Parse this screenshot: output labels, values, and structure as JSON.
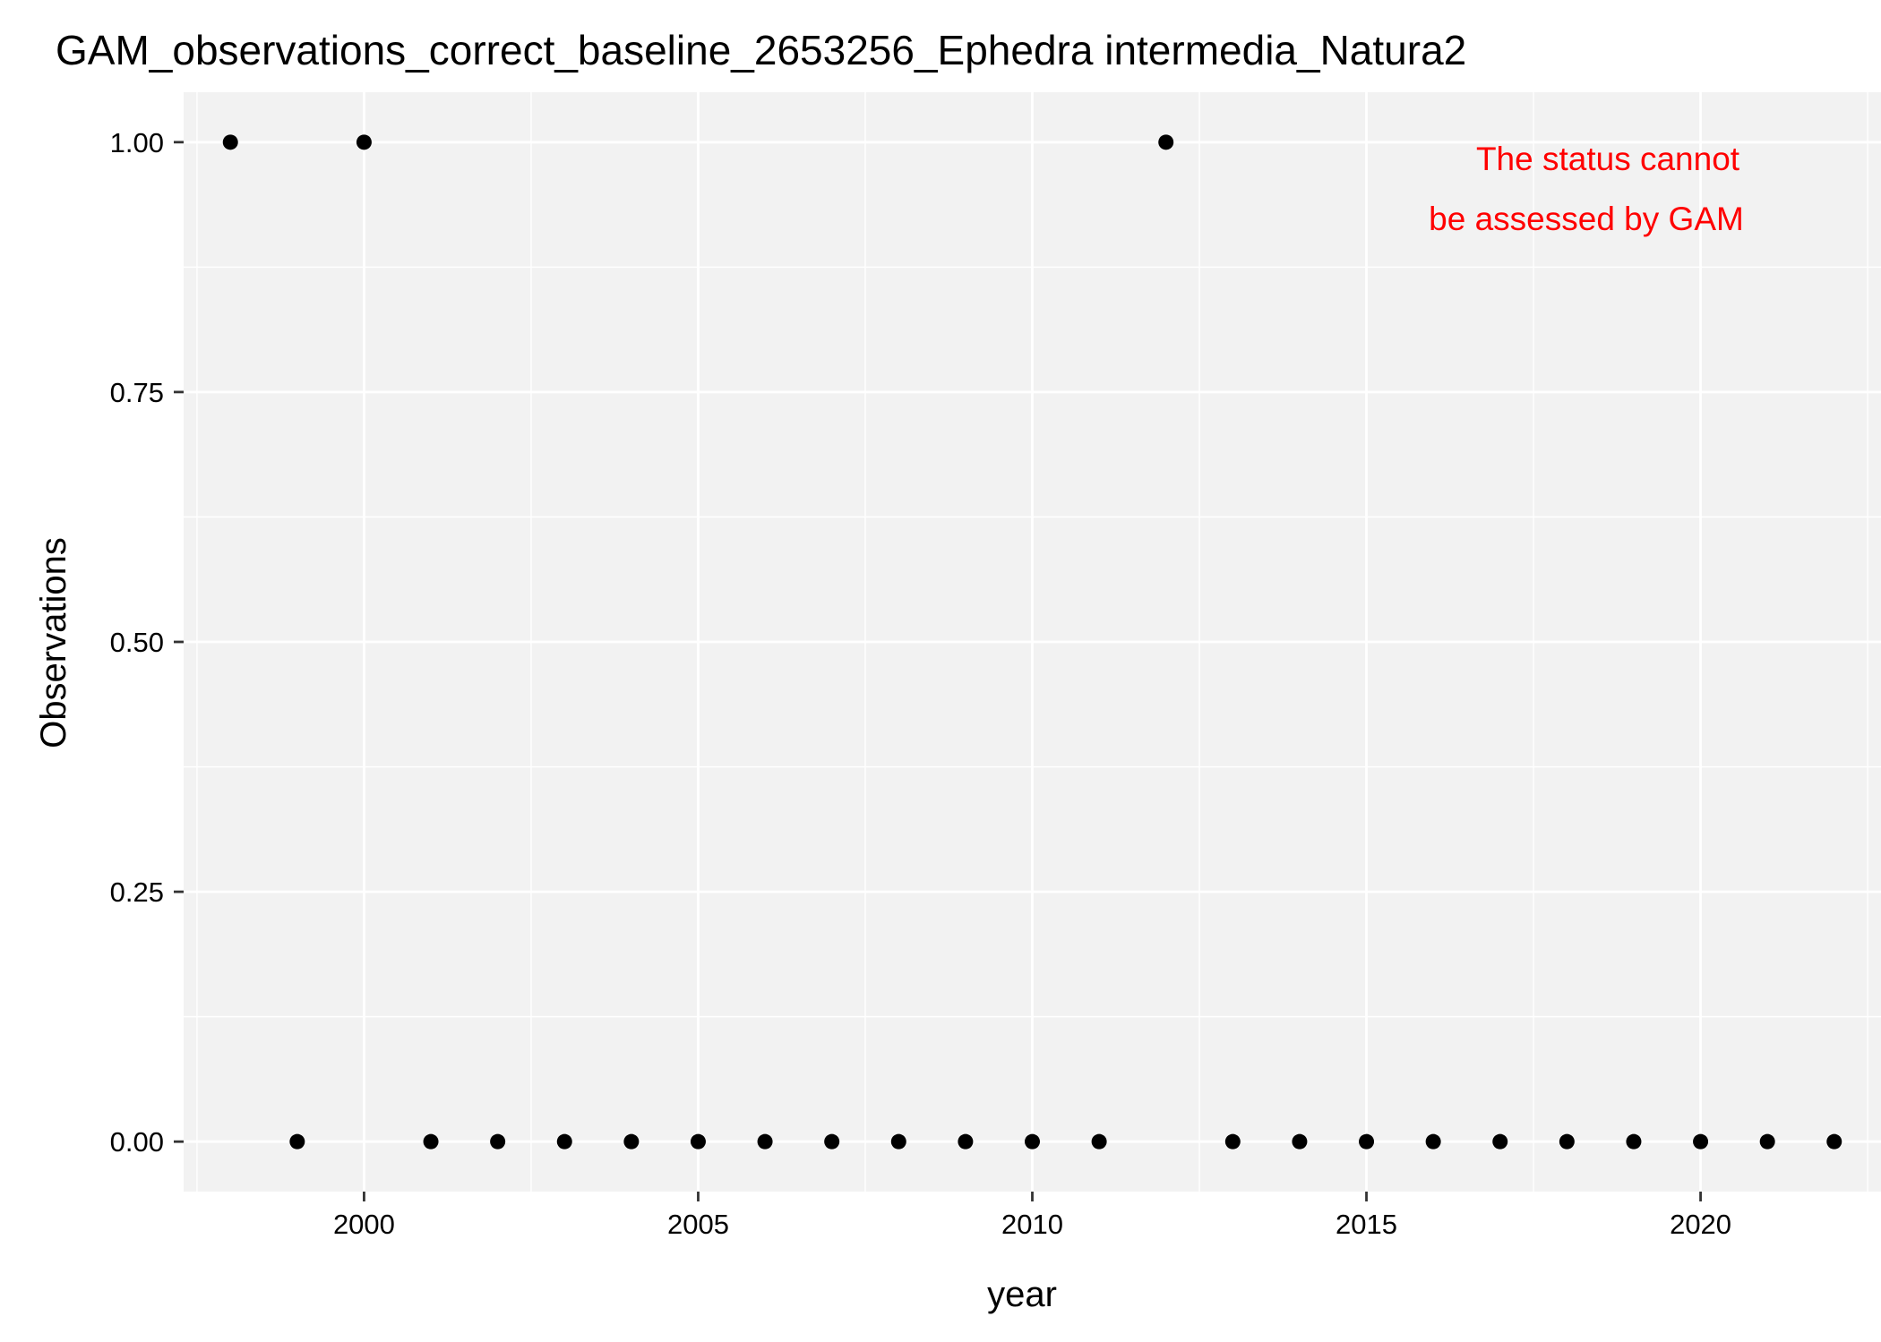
{
  "chart_data": {
    "type": "scatter",
    "title": "GAM_observations_correct_baseline_2653256_Ephedra intermedia_Natura2",
    "xlabel": "year",
    "ylabel": "Observations",
    "xlim": [
      1997.3,
      2022.7
    ],
    "ylim": [
      -0.05,
      1.05
    ],
    "x_ticks": [
      2000,
      2005,
      2010,
      2015,
      2020
    ],
    "x_minor_ticks": [
      1997.5,
      2002.5,
      2007.5,
      2012.5,
      2017.5,
      2022.5
    ],
    "y_ticks": [
      0.0,
      0.25,
      0.5,
      0.75,
      1.0
    ],
    "y_tick_labels": [
      "0.00",
      "0.25",
      "0.50",
      "0.75",
      "1.00"
    ],
    "y_minor_ticks": [
      0.125,
      0.375,
      0.625,
      0.875
    ],
    "grid": true,
    "panel_color": "#f2f2f2",
    "point_color": "#000000",
    "annotation": {
      "lines": [
        "The status cannot",
        "be assessed by GAM"
      ],
      "color": "#ff0000"
    },
    "series": [
      {
        "x": [
          1998,
          1999,
          2000,
          2001,
          2002,
          2003,
          2004,
          2005,
          2006,
          2007,
          2008,
          2009,
          2010,
          2011,
          2012,
          2013,
          2014,
          2015,
          2016,
          2017,
          2018,
          2019,
          2020,
          2021,
          2022
        ],
        "y": [
          1,
          0,
          1,
          0,
          0,
          0,
          0,
          0,
          0,
          0,
          0,
          0,
          0,
          0,
          1,
          0,
          0,
          0,
          0,
          0,
          0,
          0,
          0,
          0,
          0
        ]
      }
    ]
  }
}
